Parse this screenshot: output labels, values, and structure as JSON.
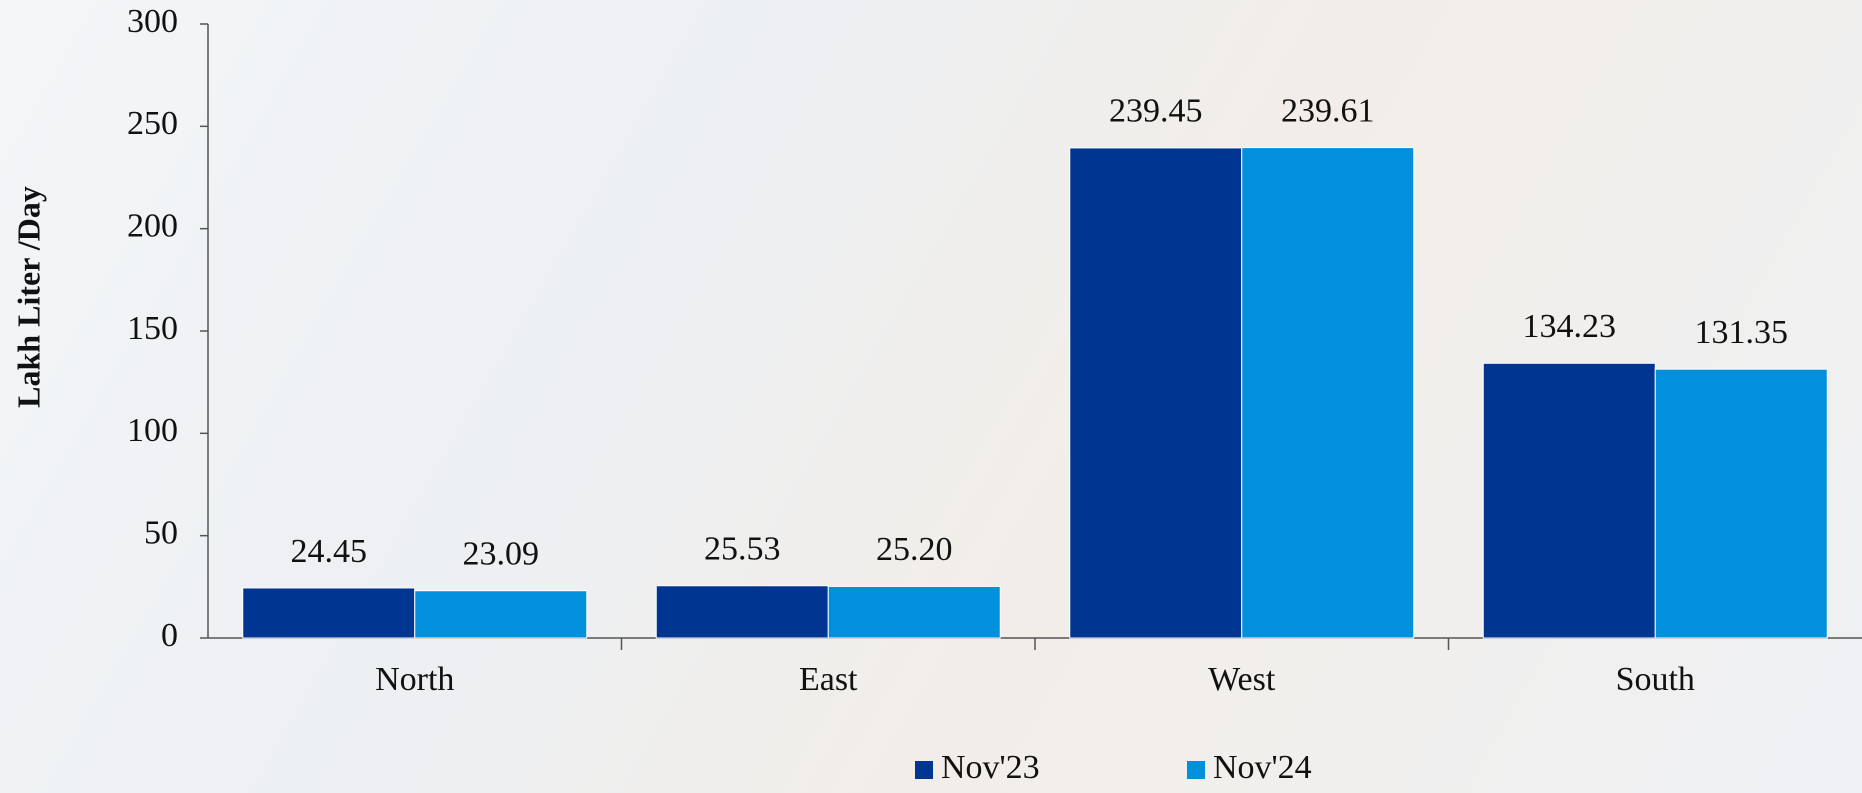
{
  "chart_data": {
    "type": "bar",
    "y_label": "Lakh Liter /Day",
    "categories": [
      "North",
      "East",
      "West",
      "South"
    ],
    "series": [
      {
        "name": "Nov'23",
        "color": "#003591",
        "values": [
          24.45,
          25.53,
          239.45,
          134.23
        ],
        "value_labels": [
          "24.45",
          "25.53",
          "239.45",
          "134.23"
        ]
      },
      {
        "name": "Nov'24",
        "color": "#0090dc",
        "values": [
          23.09,
          25.2,
          239.61,
          131.35
        ],
        "value_labels": [
          "23.09",
          "25.20",
          "239.61",
          "131.35"
        ]
      }
    ],
    "ylim": [
      0,
      300
    ],
    "yticks": [
      0,
      50,
      100,
      150,
      200,
      250,
      300
    ],
    "grid": false,
    "legend": "bottom"
  }
}
